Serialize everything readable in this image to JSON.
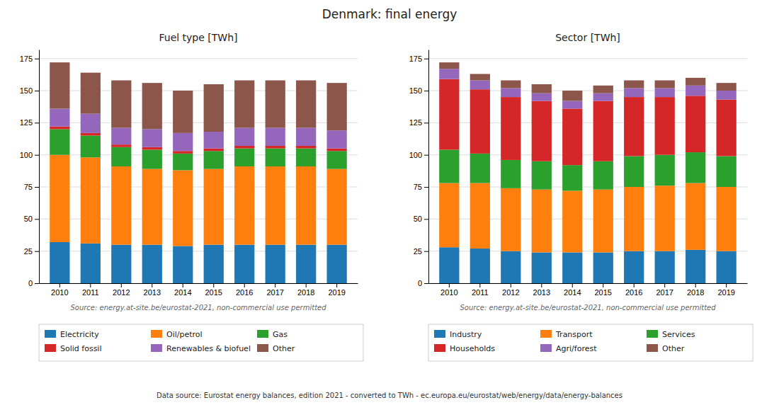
{
  "title": "Denmark: final energy",
  "annotations": [
    "Data source: Eurostat energy balances, edition 2021 - converted to TWh - ec.europa.eu/eurostat/web/energy/data/energy-balances"
  ],
  "chart_data": [
    {
      "type": "bar",
      "stacked": true,
      "title": "Fuel type [TWh]",
      "categories": [
        "2010",
        "2011",
        "2012",
        "2013",
        "2014",
        "2015",
        "2016",
        "2017",
        "2018",
        "2019"
      ],
      "series": [
        {
          "name": "Electricity",
          "color": "#1f77b4",
          "values": [
            32,
            31,
            30,
            30,
            29,
            30,
            30,
            30,
            30,
            30
          ]
        },
        {
          "name": "Oil/petrol",
          "color": "#ff7f0e",
          "values": [
            68,
            67,
            61,
            59,
            59,
            59,
            61,
            61,
            61,
            59
          ]
        },
        {
          "name": "Gas",
          "color": "#2ca02c",
          "values": [
            20,
            17,
            15,
            15,
            13,
            14,
            14,
            14,
            14,
            14
          ]
        },
        {
          "name": "Solid fossil",
          "color": "#d62728",
          "values": [
            2,
            2,
            2,
            2,
            2,
            2,
            2,
            2,
            2,
            2
          ]
        },
        {
          "name": "Renewables & biofuel",
          "color": "#9467bd",
          "values": [
            14,
            15,
            13,
            14,
            14,
            13,
            14,
            14,
            14,
            14
          ]
        },
        {
          "name": "Other",
          "color": "#8c564b",
          "values": [
            36,
            32,
            37,
            36,
            33,
            37,
            37,
            37,
            37,
            37
          ]
        }
      ],
      "ylim": [
        0,
        182
      ],
      "yticks": [
        0,
        25,
        50,
        75,
        100,
        125,
        150,
        175
      ],
      "grid": true,
      "legend": "bottom",
      "annotations": [
        "Source: energy.at-site.be/eurostat-2021, non-commercial use permitted"
      ]
    },
    {
      "type": "bar",
      "stacked": true,
      "title": "Sector [TWh]",
      "categories": [
        "2010",
        "2011",
        "2012",
        "2013",
        "2014",
        "2015",
        "2016",
        "2017",
        "2018",
        "2019"
      ],
      "series": [
        {
          "name": "Industry",
          "color": "#1f77b4",
          "values": [
            28,
            27,
            25,
            24,
            24,
            24,
            25,
            25,
            26,
            25
          ]
        },
        {
          "name": "Transport",
          "color": "#ff7f0e",
          "values": [
            50,
            51,
            49,
            49,
            48,
            49,
            50,
            51,
            52,
            50
          ]
        },
        {
          "name": "Services",
          "color": "#2ca02c",
          "values": [
            26,
            23,
            22,
            22,
            20,
            22,
            24,
            24,
            24,
            24
          ]
        },
        {
          "name": "Households",
          "color": "#d62728",
          "values": [
            55,
            50,
            49,
            47,
            44,
            47,
            46,
            45,
            44,
            44
          ]
        },
        {
          "name": "Agri/forest",
          "color": "#9467bd",
          "values": [
            8,
            7,
            7,
            6,
            6,
            6,
            7,
            7,
            8,
            7
          ]
        },
        {
          "name": "Other",
          "color": "#8c564b",
          "values": [
            5,
            5,
            6,
            7,
            8,
            6,
            6,
            6,
            6,
            6
          ]
        }
      ],
      "ylim": [
        0,
        182
      ],
      "yticks": [
        0,
        25,
        50,
        75,
        100,
        125,
        150,
        175
      ],
      "grid": true,
      "legend": "bottom",
      "annotations": [
        "Source: energy.at-site.be/eurostat-2021, non-commercial use permitted"
      ]
    }
  ]
}
